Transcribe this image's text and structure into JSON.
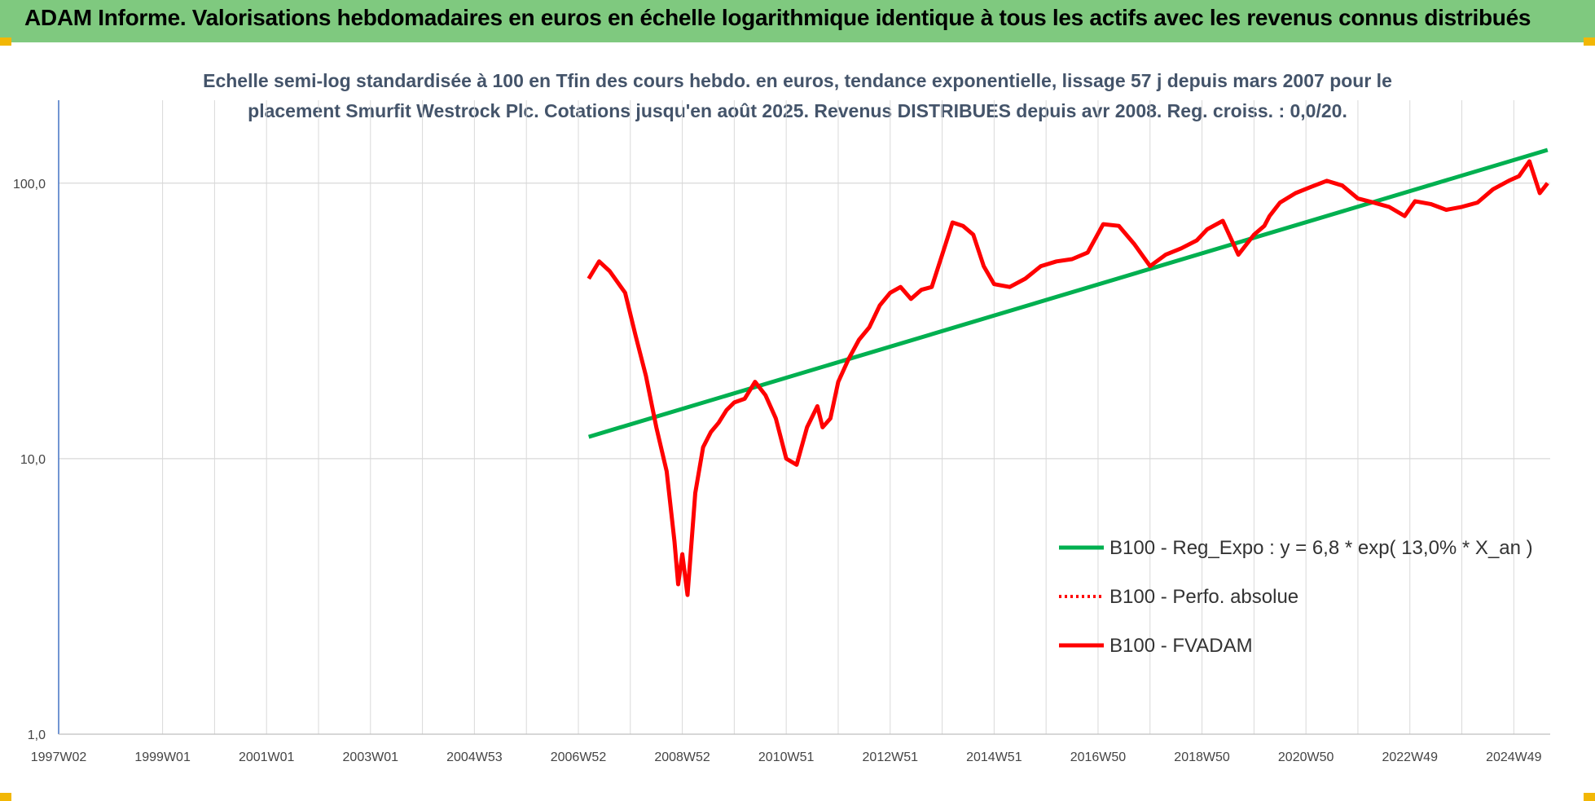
{
  "header": {
    "title": "ADAM Informe. Valorisations hebdomadaires en euros en échelle logarithmique identique à tous les actifs avec les revenus connus distribués"
  },
  "colors": {
    "title_bar": "#7fc97f",
    "regression": "#00b050",
    "fvadam": "#ff0000",
    "perfo": "#ff0000",
    "grid": "#d9d9d9",
    "corner_marks": "#f2b705"
  },
  "chart_data": {
    "type": "line",
    "title": "Echelle semi-log standardisée à 100 en Tfin des cours hebdo. en euros, tendance exponentielle, lissage 57 j depuis mars 2007 pour le placement Smurfit  Westrock Plc. Cotations jusqu'en août 2025. Revenus DISTRIBUES depuis avr 2008. Reg. croiss. : 0,0/20.",
    "title_lines": [
      "Echelle semi-log standardisée à 100 en Tfin des cours hebdo. en euros, tendance exponentielle, lissage 57 j depuis mars 2007 pour le",
      "placement Smurfit  Westrock Plc. Cotations jusqu'en août 2025. Revenus DISTRIBUES depuis avr 2008. Reg. croiss. : 0,0/20."
    ],
    "y_scale": "log",
    "ylim": [
      1,
      200
    ],
    "y_ticks": [
      1,
      10,
      100
    ],
    "y_tick_labels": [
      "1,0",
      "10,0",
      "100,0"
    ],
    "x_tick_labels": [
      "1997W02",
      "1999W01",
      "2001W01",
      "2003W01",
      "2004W53",
      "2006W52",
      "2008W52",
      "2010W51",
      "2012W51",
      "2014W51",
      "2016W50",
      "2018W50",
      "2020W50",
      "2022W49",
      "2024W49"
    ],
    "x_tick_years": [
      1997,
      1999,
      2001,
      2003,
      2005,
      2007,
      2009,
      2011,
      2013,
      2015,
      2017,
      2019,
      2021,
      2023,
      2025
    ],
    "xlim": [
      1997,
      2025.7
    ],
    "grid": "vertical and horizontal",
    "legend_position": "bottom-right",
    "series": [
      {
        "name": "B100 - Reg_Expo : y = 6,8 * exp( 13,0% *  X_an )",
        "style": "solid",
        "x": [
          2007.2,
          2025.65
        ],
        "y": [
          12,
          132
        ]
      },
      {
        "name": "B100 - Perfo. absolue",
        "style": "dotted",
        "x": [],
        "y": []
      },
      {
        "name": "B100 - FVADAM",
        "style": "solid",
        "x": [
          2007.2,
          2007.4,
          2007.6,
          2007.9,
          2008.1,
          2008.3,
          2008.5,
          2008.7,
          2008.85,
          2008.92,
          2009.0,
          2009.1,
          2009.25,
          2009.4,
          2009.55,
          2009.7,
          2009.85,
          2010.0,
          2010.2,
          2010.4,
          2010.6,
          2010.8,
          2011.0,
          2011.2,
          2011.4,
          2011.6,
          2011.7,
          2011.85,
          2012.0,
          2012.2,
          2012.4,
          2012.6,
          2012.8,
          2013.0,
          2013.2,
          2013.4,
          2013.6,
          2013.8,
          2014.0,
          2014.2,
          2014.4,
          2014.6,
          2014.8,
          2015.0,
          2015.3,
          2015.6,
          2015.9,
          2016.2,
          2016.5,
          2016.8,
          2017.1,
          2017.4,
          2017.7,
          2018.0,
          2018.3,
          2018.6,
          2018.9,
          2019.1,
          2019.4,
          2019.7,
          2020.0,
          2020.2,
          2020.3,
          2020.5,
          2020.8,
          2021.1,
          2021.4,
          2021.7,
          2022.0,
          2022.3,
          2022.6,
          2022.9,
          2023.1,
          2023.4,
          2023.7,
          2024.0,
          2024.3,
          2024.6,
          2024.9,
          2025.1,
          2025.3,
          2025.5,
          2025.65
        ],
        "y": [
          45,
          52,
          48,
          40,
          28,
          20,
          13,
          9,
          5,
          3.5,
          4.5,
          3.2,
          7.5,
          11,
          12.5,
          13.5,
          15,
          16,
          16.5,
          19,
          17,
          14,
          10,
          9.5,
          13,
          15.5,
          13,
          14,
          19,
          23,
          27,
          30,
          36,
          40,
          42,
          38,
          41,
          42,
          55,
          72,
          70,
          65,
          50,
          43,
          42,
          45,
          50,
          52,
          53,
          56,
          71,
          70,
          60,
          50,
          55,
          58,
          62,
          68,
          73,
          55,
          65,
          70,
          76,
          85,
          92,
          97,
          102,
          98,
          88,
          85,
          82,
          76,
          86,
          84,
          80,
          82,
          85,
          95,
          102,
          106,
          120,
          92,
          100
        ]
      }
    ]
  }
}
